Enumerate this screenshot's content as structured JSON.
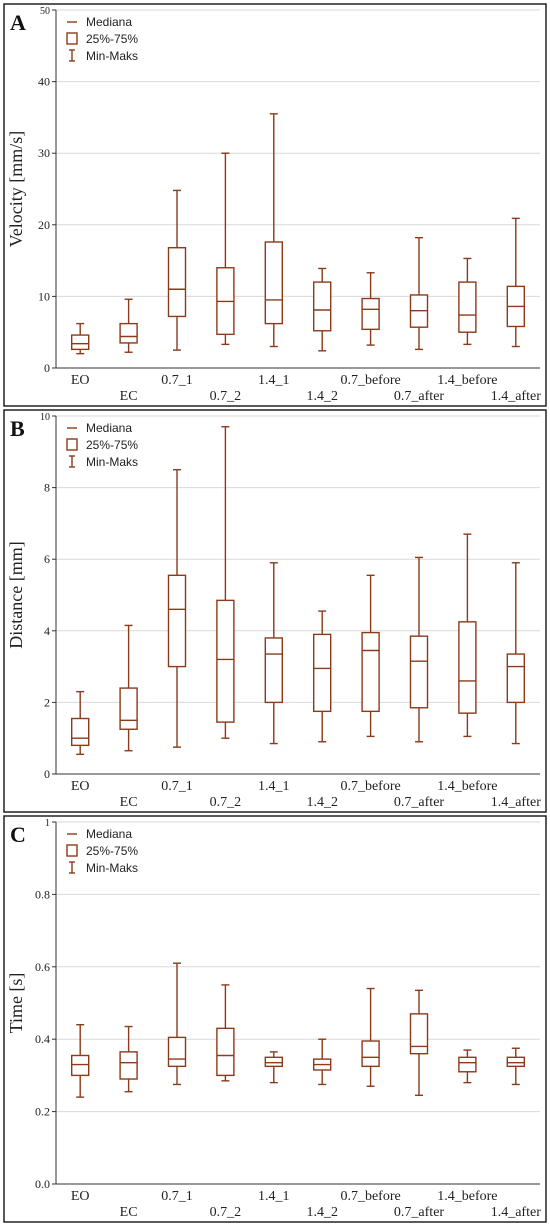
{
  "colors": {
    "box": "#8b3a1a",
    "grid": "#d9d9d9",
    "frame": "#222222"
  },
  "legend": {
    "median": "Mediana",
    "quartiles": "25%-75%",
    "range": "Min-Maks"
  },
  "chart_data": [
    {
      "panel": "A",
      "type": "boxplot",
      "ylabel": "Velocity [mm/s]",
      "ylim": [
        0,
        50
      ],
      "yticks": [
        "0",
        "10",
        "20",
        "30",
        "40",
        "50"
      ],
      "categories": [
        "EO",
        "EC",
        "0.7_1",
        "0.7_2",
        "1.4_1",
        "1.4_2",
        "0.7_before",
        "0.7_after",
        "1.4_before",
        "1.4_after"
      ],
      "min": [
        2.0,
        2.2,
        2.5,
        3.3,
        3.0,
        2.4,
        3.2,
        2.6,
        3.3,
        3.0
      ],
      "q1": [
        2.6,
        3.5,
        7.2,
        4.7,
        6.2,
        5.2,
        5.4,
        5.7,
        5.0,
        5.8
      ],
      "median": [
        3.4,
        4.4,
        11.0,
        9.3,
        9.5,
        8.1,
        8.2,
        8.0,
        7.4,
        8.6
      ],
      "q3": [
        4.6,
        6.2,
        16.8,
        14.0,
        17.6,
        12.0,
        9.7,
        10.2,
        12.0,
        11.4
      ],
      "max": [
        6.2,
        9.6,
        24.8,
        30.0,
        35.5,
        13.9,
        13.3,
        18.2,
        15.3,
        20.9
      ],
      "grid": true,
      "legend_position": "top-left"
    },
    {
      "panel": "B",
      "type": "boxplot",
      "ylabel": "Distance [mm]",
      "ylim": [
        0,
        10
      ],
      "yticks": [
        "0",
        "2",
        "4",
        "6",
        "8",
        "10"
      ],
      "categories": [
        "EO",
        "EC",
        "0.7_1",
        "0.7_2",
        "1.4_1",
        "1.4_2",
        "0.7_before",
        "0.7_after",
        "1.4_before",
        "1.4_after"
      ],
      "min": [
        0.55,
        0.65,
        0.75,
        1.0,
        0.85,
        0.9,
        1.05,
        0.9,
        1.05,
        0.85
      ],
      "q1": [
        0.8,
        1.25,
        3.0,
        1.45,
        2.0,
        1.75,
        1.75,
        1.85,
        1.7,
        2.0
      ],
      "median": [
        1.0,
        1.5,
        4.6,
        3.2,
        3.35,
        2.95,
        3.45,
        3.15,
        2.6,
        3.0
      ],
      "q3": [
        1.55,
        2.4,
        5.55,
        4.85,
        3.8,
        3.9,
        3.95,
        3.85,
        4.25,
        3.35
      ],
      "max": [
        2.3,
        4.15,
        8.5,
        9.7,
        5.9,
        4.55,
        5.55,
        6.05,
        6.7,
        5.9
      ],
      "grid": true,
      "legend_position": "top-left"
    },
    {
      "panel": "C",
      "type": "boxplot",
      "ylabel": "Time [s]",
      "ylim": [
        0,
        1
      ],
      "yticks": [
        "0.0",
        "0.2",
        "0.4",
        "0.6",
        "0.8",
        "1"
      ],
      "categories": [
        "EO",
        "EC",
        "0.7_1",
        "0.7_2",
        "1.4_1",
        "1.4_2",
        "0.7_before",
        "0.7_after",
        "1.4_before",
        "1.4_after"
      ],
      "min": [
        0.24,
        0.255,
        0.275,
        0.285,
        0.28,
        0.275,
        0.27,
        0.245,
        0.28,
        0.275
      ],
      "q1": [
        0.3,
        0.29,
        0.325,
        0.3,
        0.325,
        0.315,
        0.325,
        0.36,
        0.31,
        0.325
      ],
      "median": [
        0.33,
        0.335,
        0.345,
        0.355,
        0.335,
        0.33,
        0.35,
        0.38,
        0.335,
        0.335
      ],
      "q3": [
        0.355,
        0.365,
        0.405,
        0.43,
        0.35,
        0.345,
        0.395,
        0.47,
        0.35,
        0.35
      ],
      "max": [
        0.44,
        0.435,
        0.61,
        0.55,
        0.365,
        0.4,
        0.54,
        0.535,
        0.37,
        0.375
      ],
      "grid": true,
      "legend_position": "top-left"
    }
  ]
}
